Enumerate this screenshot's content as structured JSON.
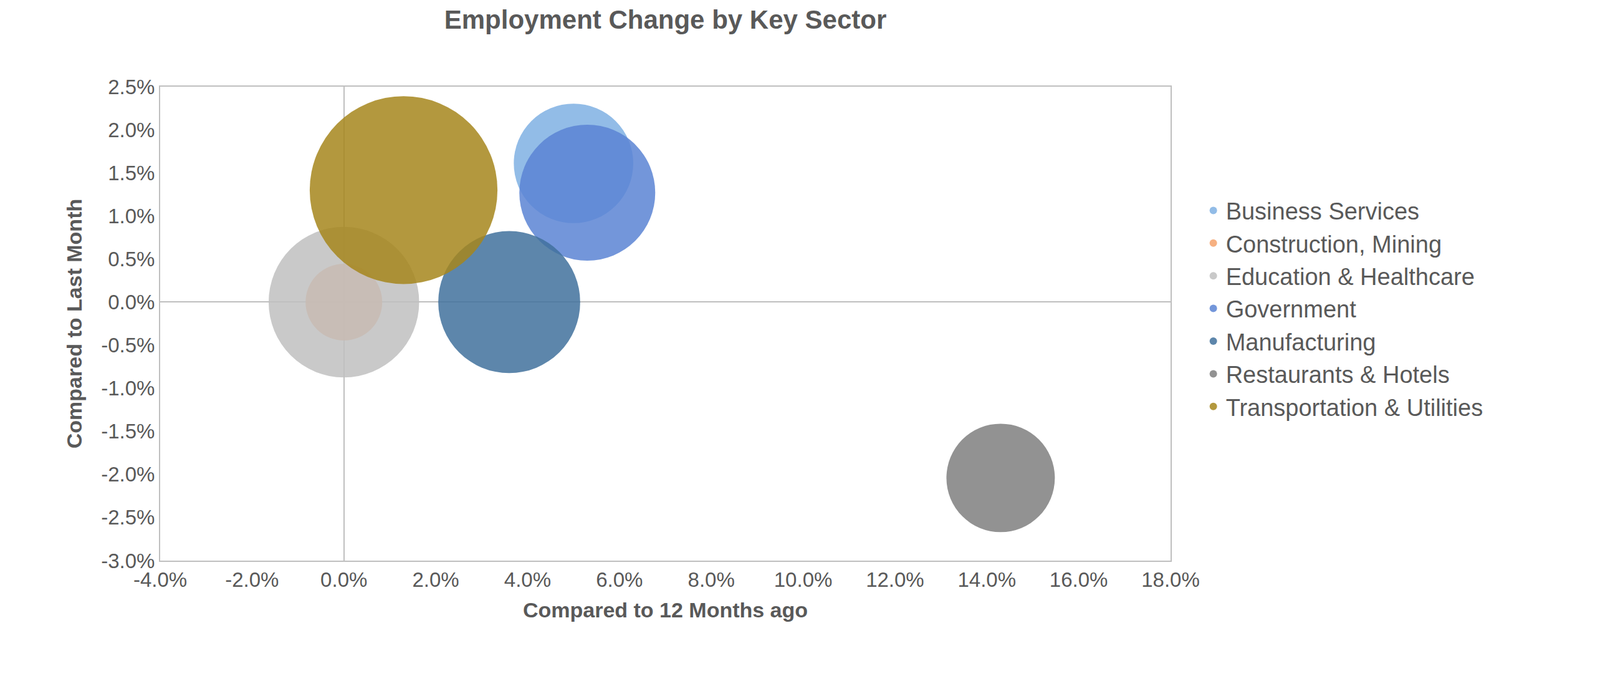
{
  "chart_data": {
    "type": "bubble",
    "title": "Employment Change by Key Sector",
    "x_label": "Compared to 12 Months ago",
    "y_label": "Compared to Last Month",
    "legend": "right",
    "grid": false,
    "xlim": [
      -4,
      18
    ],
    "ylim": [
      -3,
      2.5
    ],
    "xticks": [
      {
        "value": -4,
        "label": "-4.0%"
      },
      {
        "value": -2,
        "label": "-2.0%"
      },
      {
        "value": 0,
        "label": "0.0%"
      },
      {
        "value": 2,
        "label": "2.0%"
      },
      {
        "value": 4,
        "label": "4.0%"
      },
      {
        "value": 6,
        "label": "6.0%"
      },
      {
        "value": 8,
        "label": "8.0%"
      },
      {
        "value": 10,
        "label": "10.0%"
      },
      {
        "value": 12,
        "label": "12.0%"
      },
      {
        "value": 14,
        "label": "14.0%"
      },
      {
        "value": 16,
        "label": "16.0%"
      },
      {
        "value": 18,
        "label": "18.0%"
      }
    ],
    "yticks": [
      {
        "value": -3,
        "label": "-3.0%"
      },
      {
        "value": -2.5,
        "label": "-2.5%"
      },
      {
        "value": -2,
        "label": "-2.0%"
      },
      {
        "value": -1.5,
        "label": "-1.5%"
      },
      {
        "value": -1,
        "label": "-1.0%"
      },
      {
        "value": -0.5,
        "label": "-0.5%"
      },
      {
        "value": 0,
        "label": "0.0%"
      },
      {
        "value": 0.5,
        "label": "0.5%"
      },
      {
        "value": 1,
        "label": "1.0%"
      },
      {
        "value": 1.5,
        "label": "1.5%"
      },
      {
        "value": 2,
        "label": "2.0%"
      },
      {
        "value": 2.5,
        "label": "2.5%"
      }
    ],
    "series": [
      {
        "name": "Business Services",
        "color": "#7fb0e3",
        "x": [
          5.0
        ],
        "y": [
          1.61
        ],
        "size": [
          17
        ]
      },
      {
        "name": "Construction, Mining",
        "color": "#f4a26b",
        "x": [
          0.0
        ],
        "y": [
          0.0
        ],
        "size": [
          7
        ]
      },
      {
        "name": "Education & Healthcare",
        "color": "#bfbfbf",
        "x": [
          0.0
        ],
        "y": [
          0.0
        ],
        "size": [
          27
        ]
      },
      {
        "name": "Government",
        "color": "#5b84d3",
        "x": [
          5.3
        ],
        "y": [
          1.27
        ],
        "size": [
          22
        ]
      },
      {
        "name": "Manufacturing",
        "color": "#41719c",
        "x": [
          3.6
        ],
        "y": [
          0.0
        ],
        "size": [
          24
        ]
      },
      {
        "name": "Restaurants & Hotels",
        "color": "#7f7f7f",
        "x": [
          14.3
        ],
        "y": [
          -2.04
        ],
        "size": [
          14
        ]
      },
      {
        "name": "Transportation & Utilities",
        "color": "#a6861c",
        "x": [
          1.3
        ],
        "y": [
          1.3
        ],
        "size": [
          42
        ]
      }
    ]
  }
}
